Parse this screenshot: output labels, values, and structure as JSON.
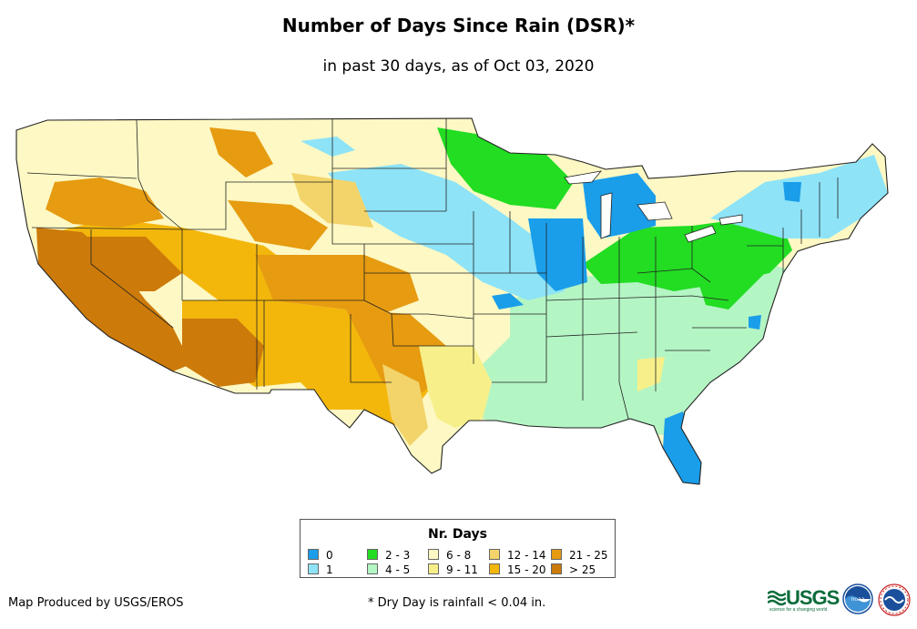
{
  "title": "Number of Days Since Rain (DSR)*",
  "subtitle": "in past 30 days, as of Oct 03, 2020",
  "legend": {
    "title": "Nr. Days",
    "items": [
      {
        "label": "0",
        "color": "#1a9eea"
      },
      {
        "label": "1",
        "color": "#8ee3f7"
      },
      {
        "label": "2 - 3",
        "color": "#22dd22"
      },
      {
        "label": "4 - 5",
        "color": "#b4f5c4"
      },
      {
        "label": "6 - 8",
        "color": "#fdf8c4"
      },
      {
        "label": "9 - 11",
        "color": "#f7f08a"
      },
      {
        "label": "12 - 14",
        "color": "#f3d46a"
      },
      {
        "label": "15 - 20",
        "color": "#f3b70c"
      },
      {
        "label": "21 - 25",
        "color": "#e69b10"
      },
      {
        "label": "> 25",
        "color": "#cc7a0a"
      }
    ]
  },
  "credit": "Map Produced by USGS/EROS",
  "footnote": "* Dry Day is rainfall < 0.04 in.",
  "logos": {
    "usgs": "USGS",
    "usgs_tagline": "science for a changing world",
    "noaa": "noaa"
  }
}
